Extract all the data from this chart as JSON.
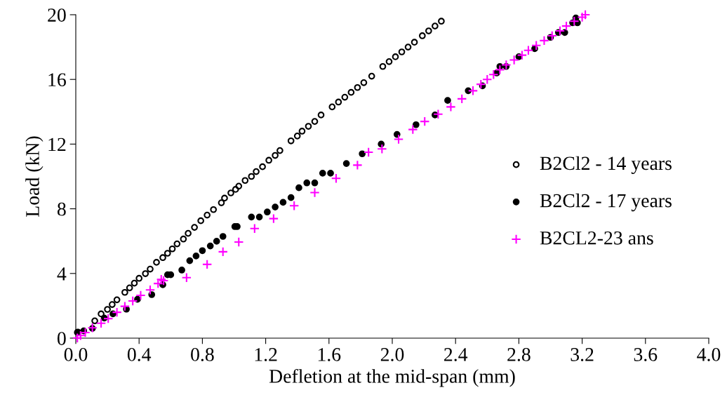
{
  "chart_data": {
    "type": "scatter",
    "xlabel": "Defletion at the mid-span (mm)",
    "ylabel": "Load (kN)",
    "xlim": [
      0,
      4.0
    ],
    "ylim": [
      0,
      20
    ],
    "xticks": [
      {
        "value": 0,
        "label": "0.0"
      },
      0.4,
      0.8,
      1.2,
      1.6,
      {
        "value": 2,
        "label": "2.0"
      },
      2.4,
      2.8,
      3.2,
      3.6,
      {
        "value": 4,
        "label": "4.0"
      }
    ],
    "yticks": [
      0,
      4,
      8,
      12,
      16,
      20
    ],
    "grid": false,
    "legend": "right",
    "series": [
      {
        "name": "B2Cl2 - 14 years",
        "color": "#000000",
        "marker": "circle",
        "x": [
          0.013,
          0.12,
          0.16,
          0.2,
          0.23,
          0.26,
          0.31,
          0.34,
          0.37,
          0.4,
          0.44,
          0.47,
          0.51,
          0.55,
          0.58,
          0.61,
          0.64,
          0.68,
          0.71,
          0.75,
          0.79,
          0.83,
          0.87,
          0.92,
          0.94,
          0.98,
          1.01,
          1.03,
          1.07,
          1.11,
          1.14,
          1.18,
          1.22,
          1.26,
          1.29,
          1.36,
          1.4,
          1.43,
          1.47,
          1.51,
          1.55,
          1.62,
          1.66,
          1.7,
          1.74,
          1.78,
          1.82,
          1.87,
          1.94,
          1.98,
          2.02,
          2.06,
          2.1,
          2.14,
          2.19,
          2.23,
          2.27,
          2.31
        ],
        "values": [
          0.38,
          1.07,
          1.5,
          1.78,
          2.08,
          2.37,
          2.83,
          3.11,
          3.4,
          3.7,
          3.99,
          4.27,
          4.69,
          4.98,
          5.25,
          5.52,
          5.83,
          6.13,
          6.48,
          6.85,
          7.26,
          7.61,
          7.95,
          8.37,
          8.66,
          8.98,
          9.2,
          9.4,
          9.75,
          10.0,
          10.3,
          10.6,
          11.0,
          11.3,
          11.6,
          12.2,
          12.5,
          12.8,
          13.1,
          13.4,
          13.8,
          14.3,
          14.6,
          14.9,
          15.2,
          15.5,
          15.8,
          16.2,
          16.8,
          17.1,
          17.4,
          17.7,
          18.0,
          18.3,
          18.7,
          19.0,
          19.3,
          19.6
        ]
      },
      {
        "name": "B2Cl2 - 17 years",
        "color": "#000000",
        "marker": "circle",
        "x": [
          0.01,
          0.05,
          0.105,
          0.18,
          0.235,
          0.32,
          0.39,
          0.48,
          0.55,
          0.58,
          0.6,
          0.67,
          0.72,
          0.76,
          0.8,
          0.85,
          0.89,
          0.93,
          1.005,
          1.02,
          1.11,
          1.16,
          1.21,
          1.26,
          1.31,
          1.36,
          1.41,
          1.46,
          1.51,
          1.56,
          1.61,
          1.71,
          1.81,
          1.93,
          2.03,
          2.15,
          2.27,
          2.35,
          2.48,
          2.57,
          2.66,
          2.68,
          2.72,
          2.8,
          2.9,
          3.0,
          3.05,
          3.09,
          3.14,
          3.16,
          3.17
        ],
        "values": [
          0.35,
          0.45,
          0.6,
          1.24,
          1.5,
          1.79,
          2.4,
          2.69,
          3.3,
          3.92,
          3.92,
          4.21,
          4.79,
          5.08,
          5.41,
          5.7,
          5.99,
          6.29,
          6.9,
          6.9,
          7.49,
          7.49,
          7.8,
          8.11,
          8.4,
          8.69,
          9.3,
          9.6,
          9.6,
          10.2,
          10.2,
          10.8,
          11.4,
          12.0,
          12.6,
          13.2,
          13.8,
          14.7,
          15.3,
          15.6,
          16.4,
          16.8,
          16.8,
          17.4,
          17.9,
          18.6,
          18.9,
          18.9,
          19.5,
          19.8,
          19.5
        ]
      },
      {
        "name": "B2CL2-23 ans",
        "color": "#ff00ff",
        "marker": "cross",
        "x": [
          0.01,
          0.03,
          0.06,
          0.105,
          0.16,
          0.205,
          0.26,
          0.31,
          0.36,
          0.41,
          0.47,
          0.52,
          0.54,
          0.555,
          0.7,
          0.83,
          0.93,
          1.03,
          1.13,
          1.25,
          1.38,
          1.51,
          1.645,
          1.78,
          1.85,
          1.935,
          2.04,
          2.13,
          2.205,
          2.29,
          2.37,
          2.44,
          2.51,
          2.56,
          2.6,
          2.64,
          2.68,
          2.72,
          2.77,
          2.82,
          2.86,
          2.91,
          2.96,
          3.01,
          3.06,
          3.1,
          3.15,
          3.2,
          3.22
        ],
        "values": [
          0.01,
          0.16,
          0.35,
          0.64,
          0.92,
          1.21,
          1.6,
          1.97,
          2.3,
          2.65,
          2.98,
          3.38,
          3.63,
          3.56,
          3.74,
          4.56,
          5.34,
          5.94,
          6.78,
          7.39,
          8.19,
          9.0,
          9.88,
          10.7,
          11.5,
          11.7,
          12.3,
          12.9,
          13.4,
          13.85,
          14.3,
          14.8,
          15.3,
          15.7,
          16.0,
          16.3,
          16.6,
          16.9,
          17.2,
          17.5,
          17.8,
          18.1,
          18.4,
          18.7,
          19.0,
          19.3,
          19.6,
          19.85,
          20.0
        ]
      }
    ]
  }
}
